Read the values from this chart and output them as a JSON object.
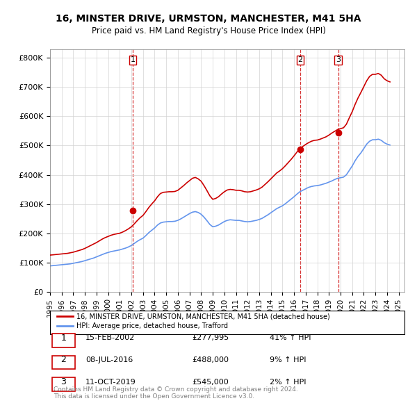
{
  "title1": "16, MINSTER DRIVE, URMSTON, MANCHESTER, M41 5HA",
  "title2": "Price paid vs. HM Land Registry's House Price Index (HPI)",
  "legend_line1": "16, MINSTER DRIVE, URMSTON, MANCHESTER, M41 5HA (detached house)",
  "legend_line2": "HPI: Average price, detached house, Trafford",
  "transactions": [
    {
      "num": 1,
      "date": "15-FEB-2002",
      "price": "£277,995",
      "pct": "41%",
      "dir": "↑"
    },
    {
      "num": 2,
      "date": "08-JUL-2016",
      "price": "£488,000",
      "pct": "9%",
      "dir": "↑"
    },
    {
      "num": 3,
      "date": "11-OCT-2019",
      "price": "£545,000",
      "pct": "2%",
      "dir": "↑"
    }
  ],
  "footnote1": "Contains HM Land Registry data © Crown copyright and database right 2024.",
  "footnote2": "This data is licensed under the Open Government Licence v3.0.",
  "hpi_color": "#6495ED",
  "price_color": "#CC0000",
  "marker_color": "#CC0000",
  "dashed_color": "#CC0000",
  "ylim": [
    0,
    830000
  ],
  "yticks": [
    0,
    100000,
    200000,
    300000,
    400000,
    500000,
    600000,
    700000,
    800000
  ],
  "ytick_labels": [
    "£0",
    "£100K",
    "£200K",
    "£300K",
    "£400K",
    "£500K",
    "£600K",
    "£700K",
    "£800K"
  ],
  "hpi_data": {
    "years": [
      1995.0,
      1995.25,
      1995.5,
      1995.75,
      1996.0,
      1996.25,
      1996.5,
      1996.75,
      1997.0,
      1997.25,
      1997.5,
      1997.75,
      1998.0,
      1998.25,
      1998.5,
      1998.75,
      1999.0,
      1999.25,
      1999.5,
      1999.75,
      2000.0,
      2000.25,
      2000.5,
      2000.75,
      2001.0,
      2001.25,
      2001.5,
      2001.75,
      2002.0,
      2002.25,
      2002.5,
      2002.75,
      2003.0,
      2003.25,
      2003.5,
      2003.75,
      2004.0,
      2004.25,
      2004.5,
      2004.75,
      2005.0,
      2005.25,
      2005.5,
      2005.75,
      2006.0,
      2006.25,
      2006.5,
      2006.75,
      2007.0,
      2007.25,
      2007.5,
      2007.75,
      2008.0,
      2008.25,
      2008.5,
      2008.75,
      2009.0,
      2009.25,
      2009.5,
      2009.75,
      2010.0,
      2010.25,
      2010.5,
      2010.75,
      2011.0,
      2011.25,
      2011.5,
      2011.75,
      2012.0,
      2012.25,
      2012.5,
      2012.75,
      2013.0,
      2013.25,
      2013.5,
      2013.75,
      2014.0,
      2014.25,
      2014.5,
      2014.75,
      2015.0,
      2015.25,
      2015.5,
      2015.75,
      2016.0,
      2016.25,
      2016.5,
      2016.75,
      2017.0,
      2017.25,
      2017.5,
      2017.75,
      2018.0,
      2018.25,
      2018.5,
      2018.75,
      2019.0,
      2019.25,
      2019.5,
      2019.75,
      2020.0,
      2020.25,
      2020.5,
      2020.75,
      2021.0,
      2021.25,
      2021.5,
      2021.75,
      2022.0,
      2022.25,
      2022.5,
      2022.75,
      2023.0,
      2023.25,
      2023.5,
      2023.75,
      2024.0,
      2024.25
    ],
    "values": [
      88000,
      89000,
      90000,
      91000,
      92000,
      93000,
      94000,
      95000,
      97000,
      99000,
      101000,
      103000,
      106000,
      109000,
      112000,
      115000,
      119000,
      123000,
      127000,
      131000,
      134000,
      137000,
      139000,
      141000,
      143000,
      146000,
      149000,
      153000,
      158000,
      165000,
      172000,
      178000,
      183000,
      192000,
      202000,
      210000,
      218000,
      228000,
      235000,
      238000,
      239000,
      240000,
      240000,
      241000,
      244000,
      249000,
      255000,
      261000,
      267000,
      272000,
      274000,
      271000,
      265000,
      255000,
      243000,
      230000,
      222000,
      224000,
      228000,
      234000,
      240000,
      244000,
      246000,
      245000,
      244000,
      244000,
      242000,
      240000,
      239000,
      240000,
      242000,
      244000,
      247000,
      251000,
      257000,
      263000,
      270000,
      277000,
      284000,
      289000,
      294000,
      301000,
      309000,
      317000,
      325000,
      334000,
      342000,
      347000,
      352000,
      357000,
      360000,
      362000,
      363000,
      365000,
      368000,
      371000,
      375000,
      379000,
      384000,
      388000,
      390000,
      392000,
      400000,
      415000,
      430000,
      448000,
      463000,
      475000,
      490000,
      505000,
      515000,
      520000,
      520000,
      522000,
      518000,
      510000,
      505000,
      502000
    ]
  },
  "property_data": {
    "years": [
      1995.0,
      1995.25,
      1995.5,
      1995.75,
      1996.0,
      1996.25,
      1996.5,
      1996.75,
      1997.0,
      1997.25,
      1997.5,
      1997.75,
      1998.0,
      1998.25,
      1998.5,
      1998.75,
      1999.0,
      1999.25,
      1999.5,
      1999.75,
      2000.0,
      2000.25,
      2000.5,
      2000.75,
      2001.0,
      2001.25,
      2001.5,
      2001.75,
      2002.0,
      2002.25,
      2002.5,
      2002.75,
      2003.0,
      2003.25,
      2003.5,
      2003.75,
      2004.0,
      2004.25,
      2004.5,
      2004.75,
      2005.0,
      2005.25,
      2005.5,
      2005.75,
      2006.0,
      2006.25,
      2006.5,
      2006.75,
      2007.0,
      2007.25,
      2007.5,
      2007.75,
      2008.0,
      2008.25,
      2008.5,
      2008.75,
      2009.0,
      2009.25,
      2009.5,
      2009.75,
      2010.0,
      2010.25,
      2010.5,
      2010.75,
      2011.0,
      2011.25,
      2011.5,
      2011.75,
      2012.0,
      2012.25,
      2012.5,
      2012.75,
      2013.0,
      2013.25,
      2013.5,
      2013.75,
      2014.0,
      2014.25,
      2014.5,
      2014.75,
      2015.0,
      2015.25,
      2015.5,
      2015.75,
      2016.0,
      2016.25,
      2016.5,
      2016.75,
      2017.0,
      2017.25,
      2017.5,
      2017.75,
      2018.0,
      2018.25,
      2018.5,
      2018.75,
      2019.0,
      2019.25,
      2019.5,
      2019.75,
      2020.0,
      2020.25,
      2020.5,
      2020.75,
      2021.0,
      2021.25,
      2021.5,
      2021.75,
      2022.0,
      2022.25,
      2022.5,
      2022.75,
      2023.0,
      2023.25,
      2023.5,
      2023.75,
      2024.0,
      2024.25
    ],
    "values": [
      125000,
      126000,
      127000,
      128000,
      129000,
      130000,
      131000,
      133000,
      135000,
      138000,
      141000,
      144000,
      148000,
      153000,
      158000,
      163000,
      168000,
      174000,
      180000,
      185000,
      189000,
      193000,
      196000,
      198000,
      200000,
      204000,
      209000,
      215000,
      222000,
      232000,
      243000,
      253000,
      261000,
      274000,
      288000,
      300000,
      311000,
      325000,
      336000,
      340000,
      341000,
      342000,
      342000,
      343000,
      347000,
      355000,
      363000,
      372000,
      380000,
      388000,
      391000,
      386000,
      378000,
      363000,
      346000,
      328000,
      316000,
      319000,
      325000,
      334000,
      342000,
      348000,
      350000,
      349000,
      347000,
      347000,
      345000,
      342000,
      341000,
      342000,
      345000,
      348000,
      352000,
      358000,
      367000,
      376000,
      386000,
      396000,
      406000,
      413000,
      421000,
      431000,
      442000,
      453000,
      465000,
      478000,
      490000,
      497000,
      504000,
      510000,
      515000,
      518000,
      519000,
      522000,
      526000,
      530000,
      536000,
      543000,
      549000,
      555000,
      558000,
      561000,
      573000,
      595000,
      616000,
      641000,
      663000,
      682000,
      702000,
      722000,
      737000,
      744000,
      744000,
      747000,
      741000,
      729000,
      722000,
      718000
    ]
  },
  "transaction_years": [
    2002.12,
    2016.52,
    2019.79
  ],
  "transaction_prices": [
    277995,
    488000,
    545000
  ],
  "xlim_start": 1995,
  "xlim_end": 2025.5,
  "xticks": [
    1995,
    1996,
    1997,
    1998,
    1999,
    2000,
    2001,
    2002,
    2003,
    2004,
    2005,
    2006,
    2007,
    2008,
    2009,
    2010,
    2011,
    2012,
    2013,
    2014,
    2015,
    2016,
    2017,
    2018,
    2019,
    2020,
    2021,
    2022,
    2023,
    2024,
    2025
  ]
}
